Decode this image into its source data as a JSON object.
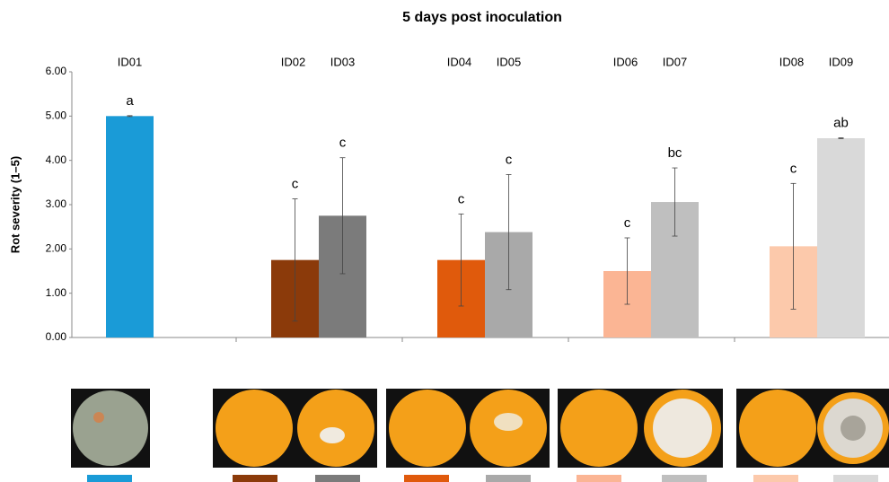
{
  "chart_data": {
    "type": "bar",
    "title": "5 days post inoculation",
    "y_label": "Rot severity (1–5)",
    "categories": [
      "ID01",
      "ID02",
      "ID03",
      "ID04",
      "ID05",
      "ID06",
      "ID07",
      "ID08",
      "ID09"
    ],
    "values": [
      5.0,
      1.75,
      2.75,
      1.75,
      2.38,
      1.5,
      3.06,
      2.06,
      4.5
    ],
    "errors": [
      0.01,
      1.38,
      1.31,
      1.04,
      1.3,
      0.75,
      0.77,
      1.42,
      0.01
    ],
    "significance": [
      "a",
      "c",
      "c",
      "c",
      "c",
      "c",
      "bc",
      "c",
      "ab"
    ],
    "colors": [
      "#1a9bd7",
      "#8b3a0a",
      "#7b7b7b",
      "#e05a0c",
      "#a9a9a9",
      "#fbb594",
      "#bfbfbf",
      "#fcc9ab",
      "#d9d9d9"
    ],
    "ylim": [
      0,
      6
    ],
    "yticks": [
      {
        "value": 0,
        "label": "0.00"
      },
      {
        "value": 1,
        "label": "1.00"
      },
      {
        "value": 2,
        "label": "2.00"
      },
      {
        "value": 3,
        "label": "3.00"
      },
      {
        "value": 4,
        "label": "4.00"
      },
      {
        "value": 5,
        "label": "5.00"
      },
      {
        "value": 6,
        "label": "6.00"
      }
    ]
  }
}
